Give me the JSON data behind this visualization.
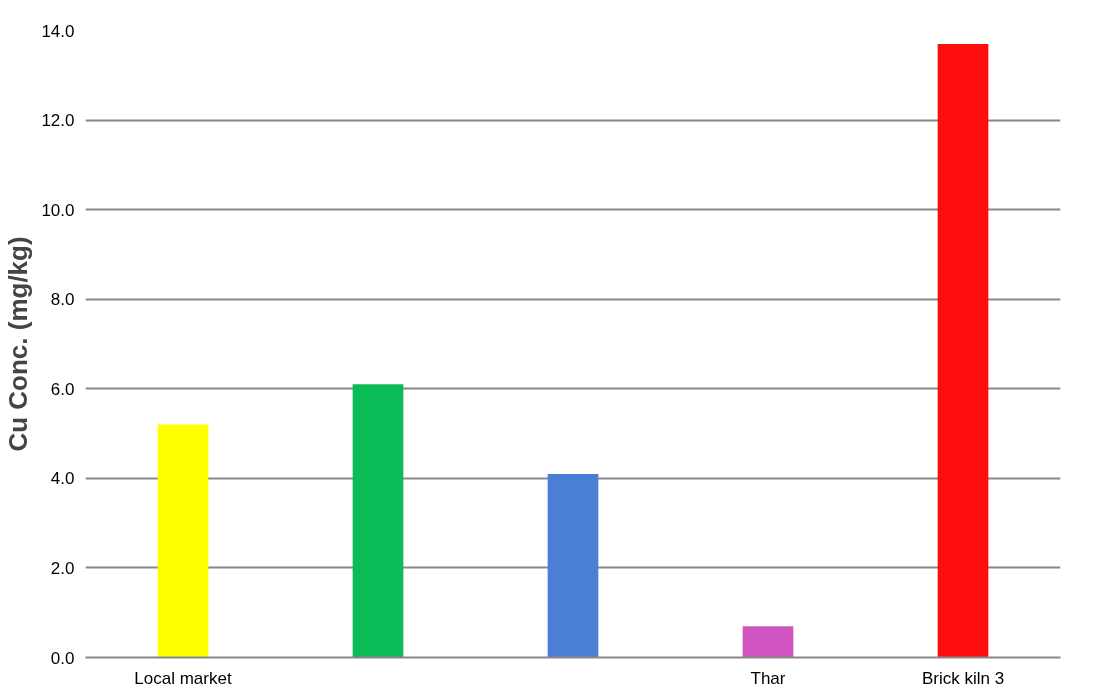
{
  "chart_data": {
    "type": "bar",
    "ylabel": "Cu Conc. (mg/kg)",
    "categories": [
      "Local market",
      null,
      null,
      "Thar",
      "Brick kiln 3"
    ],
    "values": [
      5.2,
      6.1,
      4.1,
      0.7,
      13.7
    ],
    "colors": [
      "#ffff00",
      "#0bbb55",
      "#4a7fd4",
      "#d155c0",
      "#ff0d0d"
    ],
    "ylim": [
      0,
      14
    ],
    "yticks": [
      {
        "value": 0,
        "label": "0.0"
      },
      {
        "value": 2,
        "label": "2.0"
      },
      {
        "value": 4,
        "label": "4.0"
      },
      {
        "value": 6,
        "label": "6.0"
      },
      {
        "value": 8,
        "label": "8.0"
      },
      {
        "value": 10,
        "label": "10.0"
      },
      {
        "value": 12,
        "label": "12.0"
      },
      {
        "value": 14,
        "label": "14.0"
      }
    ],
    "grid": "y"
  }
}
